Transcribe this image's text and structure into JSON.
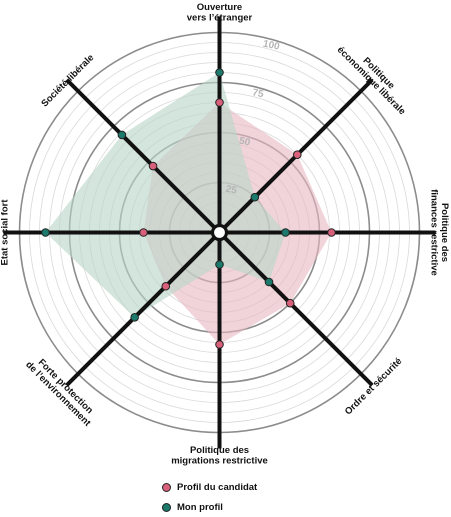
{
  "chart_data": {
    "type": "radar",
    "axes": [
      [
        "Ouverture",
        "vers l’étranger"
      ],
      [
        "Politique",
        "économique libérale"
      ],
      [
        "Politique des",
        "finances restrictive"
      ],
      [
        "Ordre et sécurité"
      ],
      [
        "Politique des",
        "migrations restrictive"
      ],
      [
        "Forte protection",
        "de l’environnement"
      ],
      [
        "Etat social fort"
      ],
      [
        "Société libérale"
      ]
    ],
    "rlim": [
      0,
      100
    ],
    "ticks": [
      25,
      50,
      75,
      100
    ],
    "series": [
      {
        "name": "Profil du candidat",
        "color": "#d9607a",
        "fill": "#e8b7c0",
        "values": [
          65,
          55,
          56,
          50,
          56,
          38,
          38,
          47
        ]
      },
      {
        "name": "Mon profil",
        "color": "#1b7a6b",
        "fill": "#b9d5c8",
        "values": [
          80,
          25,
          33,
          35,
          16,
          60,
          87,
          69
        ]
      }
    ]
  },
  "legend": {
    "candidate": "Profil du candidat",
    "mine": "Mon profil"
  }
}
